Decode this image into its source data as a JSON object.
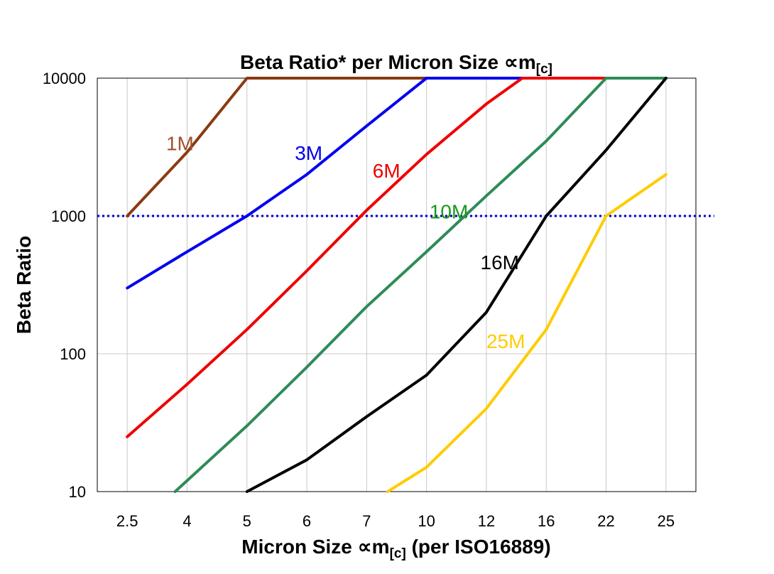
{
  "chart_data": {
    "type": "line",
    "title": "Beta Ratio* per Micron Size ",
    "title_sub": "[c]",
    "title_unit": "∝m",
    "xlabel_pre": "Micron Size ",
    "xlabel_unit": "∝m",
    "xlabel_sub": "[c]",
    "xlabel_post": " (per ISO16889)",
    "ylabel": "Beta Ratio",
    "x_scale": "categorical",
    "y_scale": "log",
    "ylim": [
      10,
      10000
    ],
    "grid": true,
    "categories": [
      "2.5",
      "4",
      "5",
      "6",
      "7",
      "10",
      "12",
      "16",
      "22",
      "25"
    ],
    "y_ticks": [
      "10",
      "100",
      "1000",
      "10000"
    ],
    "reference_line": {
      "y": 1000,
      "color": "#0000cc",
      "style": "dotted"
    },
    "series": [
      {
        "name": "1M",
        "color": "#8b3a0f",
        "label_color": "#a0522d",
        "points": [
          [
            0,
            1000
          ],
          [
            1,
            2900
          ],
          [
            2,
            10000
          ],
          [
            3,
            10000
          ],
          [
            4,
            10000
          ],
          [
            5,
            10000
          ],
          [
            6,
            10000
          ],
          [
            7,
            10000
          ],
          [
            8,
            10000
          ],
          [
            9,
            10000
          ]
        ]
      },
      {
        "name": "3M",
        "color": "#0000ee",
        "label_color": "#0000ee",
        "points": [
          [
            0,
            300
          ],
          [
            1,
            550
          ],
          [
            2,
            1000
          ],
          [
            3,
            2000
          ],
          [
            4,
            4500
          ],
          [
            5,
            10000
          ],
          [
            6,
            10000
          ],
          [
            7,
            10000
          ],
          [
            8,
            10000
          ],
          [
            9,
            10000
          ]
        ]
      },
      {
        "name": "6M",
        "color": "#ee0000",
        "label_color": "#ee0000",
        "points": [
          [
            0,
            25
          ],
          [
            1,
            60
          ],
          [
            2,
            150
          ],
          [
            3,
            400
          ],
          [
            4,
            1100
          ],
          [
            5,
            2800
          ],
          [
            6,
            6500
          ],
          [
            6.6,
            10000
          ],
          [
            9,
            10000
          ]
        ]
      },
      {
        "name": "10M",
        "color": "#2e8b57",
        "label_color": "#1a9a1a",
        "points": [
          [
            0.8,
            10
          ],
          [
            2,
            30
          ],
          [
            3,
            80
          ],
          [
            4,
            220
          ],
          [
            5,
            550
          ],
          [
            6,
            1400
          ],
          [
            7,
            3500
          ],
          [
            8,
            10000
          ],
          [
            9,
            10000
          ]
        ]
      },
      {
        "name": "16M",
        "color": "#000000",
        "label_color": "#000000",
        "points": [
          [
            2,
            10
          ],
          [
            3,
            17
          ],
          [
            4,
            35
          ],
          [
            5,
            70
          ],
          [
            6,
            200
          ],
          [
            7,
            1000
          ],
          [
            8,
            3000
          ],
          [
            9,
            10000
          ]
        ]
      },
      {
        "name": "25M",
        "color": "#ffcc00",
        "label_color": "#ffcc00",
        "points": [
          [
            4.35,
            10
          ],
          [
            5,
            15
          ],
          [
            6,
            40
          ],
          [
            7,
            150
          ],
          [
            8,
            1000
          ],
          [
            9,
            2000
          ]
        ]
      }
    ]
  }
}
